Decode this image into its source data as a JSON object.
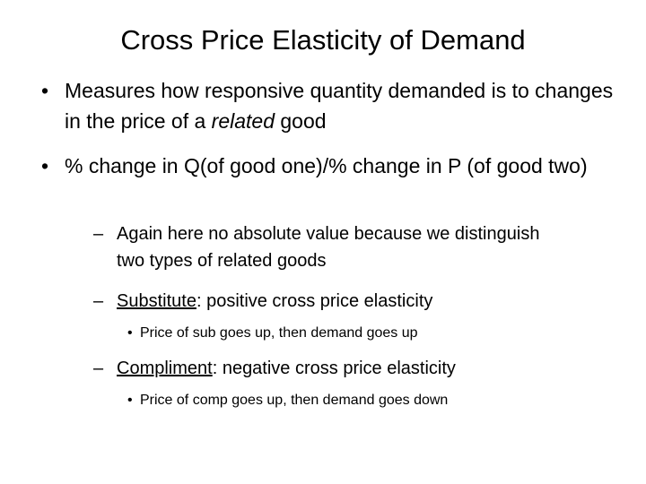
{
  "slide": {
    "title": "Cross Price Elasticity of Demand",
    "bullets": {
      "b1": {
        "text_before": "Measures how responsive quantity demanded is to changes in the price of a ",
        "emphasis": "related",
        "text_after": " good"
      },
      "b2": {
        "text": "% change in Q(of good one)/% change in P (of good two)"
      },
      "sub1": {
        "text": "Again here no absolute value because we distinguish two types of related goods"
      },
      "sub2": {
        "underlined": "Substitute",
        "rest": ": positive cross price elasticity"
      },
      "sub2a": {
        "text": "Price of sub goes up, then demand goes up"
      },
      "sub3": {
        "underlined": "Compliment",
        "rest": ": negative cross price elasticity"
      },
      "sub3a": {
        "text": "Price of comp goes up, then demand goes down"
      }
    },
    "markers": {
      "level1": "•",
      "level2": "–",
      "level3": "•"
    }
  }
}
